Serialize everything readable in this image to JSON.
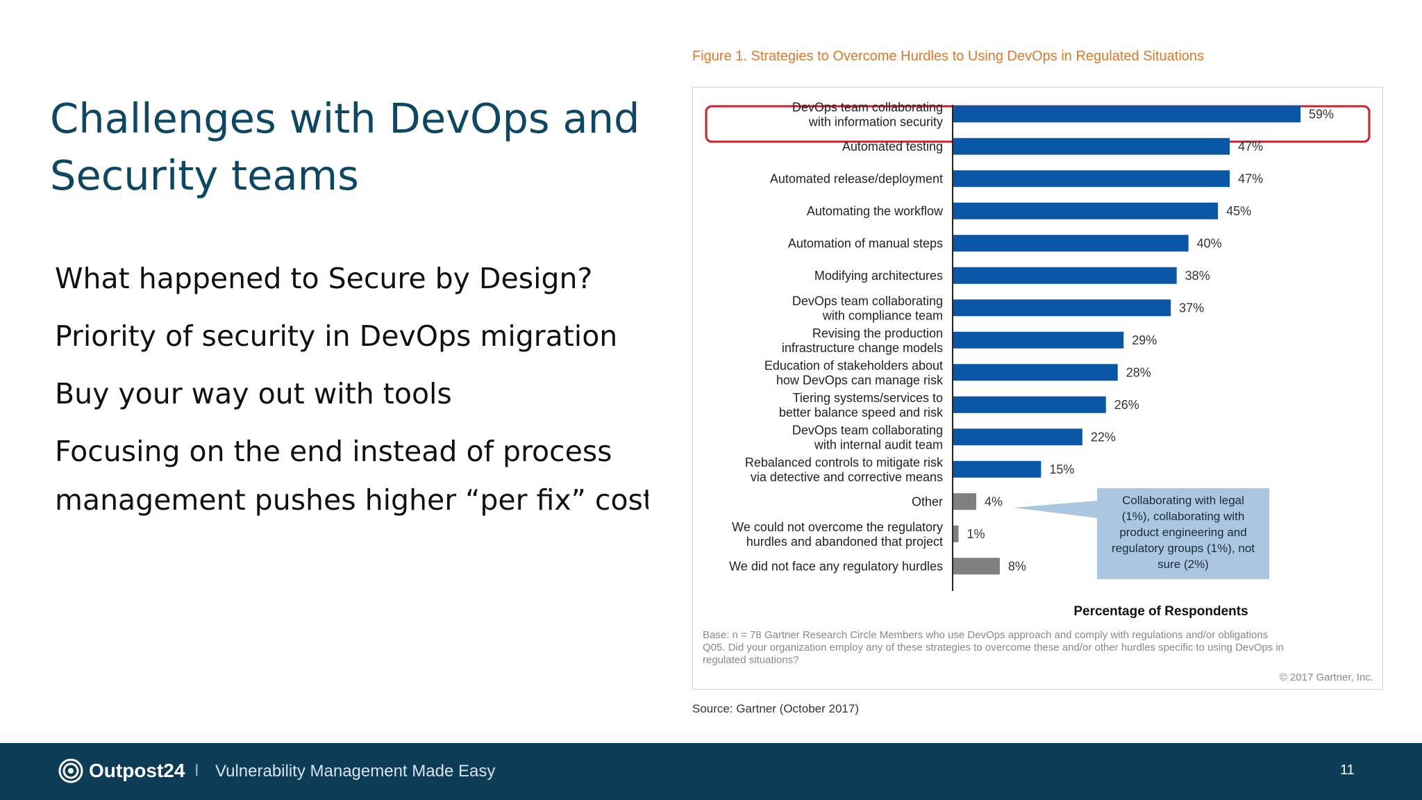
{
  "slide": {
    "title_line1": "Challenges with DevOps and",
    "title_line2": "Security teams",
    "bullets": [
      "What happened to Secure by Design?",
      "Priority of security in DevOps migration",
      "Buy your way out with tools"
    ],
    "bullet4_line1": "Focusing on the end instead of process",
    "bullet4_line2": "management pushes higher “per fix” cost"
  },
  "figure": {
    "caption": "Figure 1. Strategies to Overcome Hurdles to Using DevOps in Regulated Situations",
    "source": "Source: Gartner (October 2017)",
    "base_note_line1": "Base: n = 78 Gartner Research Circle Members who use DevOps approach and comply with regulations and/or obligations",
    "base_note_line2": "Q05. Did your organization employ any of these strategies to overcome these and/or other hurdles specific to using DevOps in",
    "base_note_line3": "regulated situations?",
    "copyright": "© 2017 Gartner, Inc.",
    "callout_lines": [
      "Collaborating with legal",
      "(1%), collaborating with",
      "product engineering and",
      "regulatory groups (1%), not",
      "sure (2%)"
    ]
  },
  "chart_data": {
    "type": "bar",
    "orientation": "horizontal",
    "categories": [
      [
        "DevOps team collaborating",
        "with information security"
      ],
      [
        "Automated testing"
      ],
      [
        "Automated release/deployment"
      ],
      [
        "Automating the workflow"
      ],
      [
        "Automation of manual steps"
      ],
      [
        "Modifying architectures"
      ],
      [
        "DevOps team collaborating",
        "with compliance team"
      ],
      [
        "Revising the production",
        "infrastructure change models"
      ],
      [
        "Education of stakeholders about",
        "how DevOps can manage risk"
      ],
      [
        "Tiering systems/services to",
        "better balance speed and risk"
      ],
      [
        "DevOps team collaborating",
        "with internal audit team"
      ],
      [
        "Rebalanced controls to mitigate risk",
        "via detective and corrective means"
      ],
      [
        "Other"
      ],
      [
        "We could not overcome the regulatory",
        "hurdles and abandoned that project"
      ],
      [
        "We did not face any regulatory hurdles"
      ]
    ],
    "values": [
      59,
      47,
      47,
      45,
      40,
      38,
      37,
      29,
      28,
      26,
      22,
      15,
      4,
      1,
      8
    ],
    "value_labels": [
      "59%",
      "47%",
      "47%",
      "45%",
      "40%",
      "38%",
      "37%",
      "29%",
      "28%",
      "26%",
      "22%",
      "15%",
      "4%",
      "1%",
      "8%"
    ],
    "highlighted_index": 0,
    "gray_from_index": 12,
    "xlabel": "Percentage of Respondents",
    "xlim": [
      0,
      70
    ],
    "colors": {
      "primary": "#0a57a8",
      "secondary": "#7f7f7f",
      "highlight": "#c8202e",
      "callout": "#aac6e0"
    }
  },
  "footer": {
    "brand": "Outpost24",
    "separator": "I",
    "tagline": "Vulnerability Management Made Easy",
    "page_number": "11"
  }
}
